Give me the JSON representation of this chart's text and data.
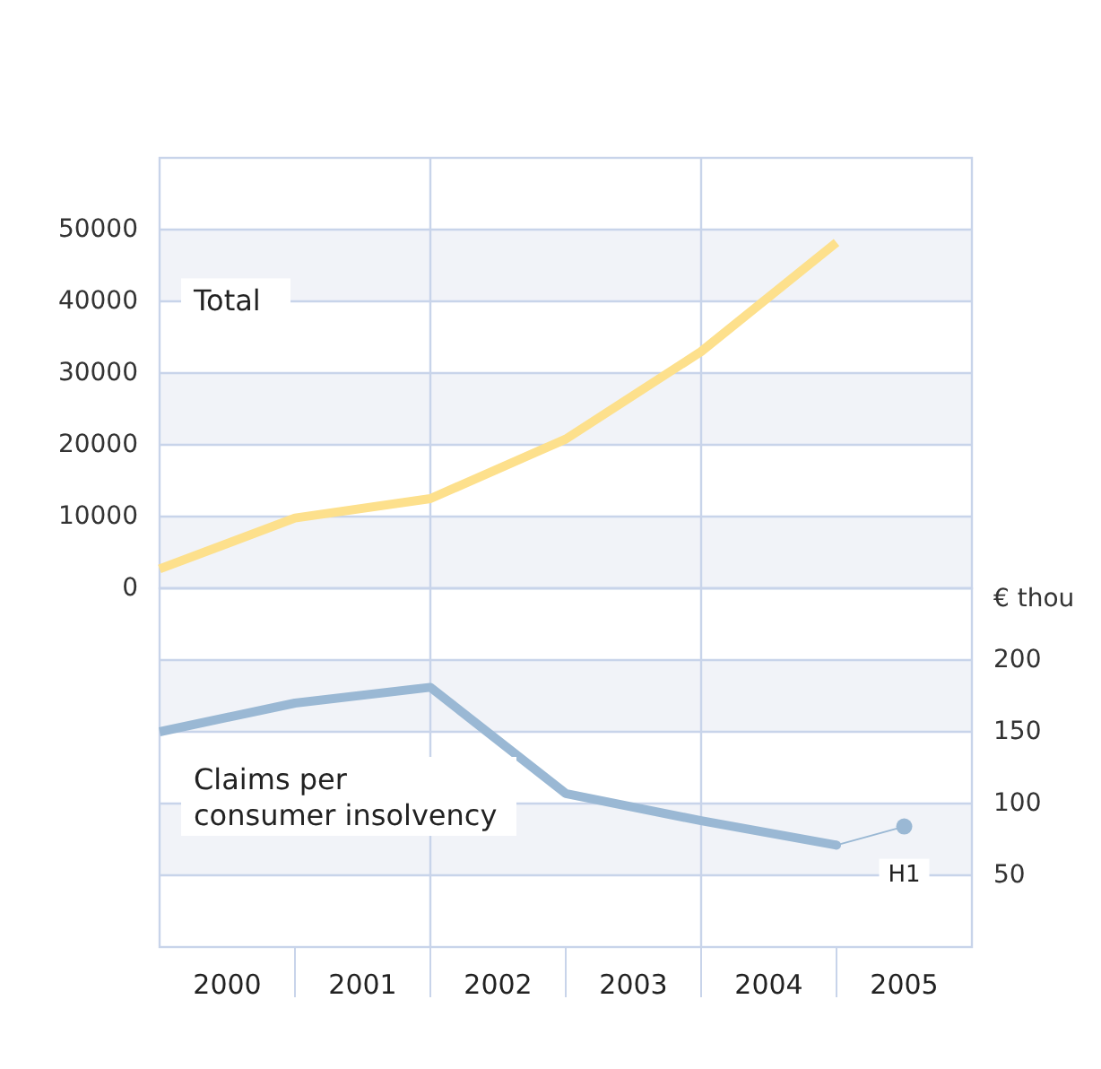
{
  "chart_data": [
    {
      "type": "line",
      "x": [
        2000,
        2001,
        2002,
        2003,
        2004,
        2005
      ],
      "series": [
        {
          "name": "Total",
          "color": "#fde08c",
          "values": [
            2700,
            9800,
            12500,
            20800,
            33000,
            48200
          ]
        }
      ],
      "xlim": [
        2000,
        2006
      ],
      "ylim": [
        0,
        60000
      ],
      "yticks": [
        0,
        10000,
        20000,
        30000,
        40000,
        50000
      ],
      "grid": "y",
      "tick_labels": "y",
      "ref_lines": [
        {
          "axis": "x",
          "value": 2002,
          "color": "#c8d4ea"
        },
        {
          "axis": "x",
          "value": 2004,
          "color": "#c8d4ea"
        }
      ]
    },
    {
      "type": "line",
      "x": [
        2000,
        2001,
        2002,
        2003,
        2004,
        2005
      ],
      "series": [
        {
          "name": "Claims per consumer insolvency",
          "color": "#9ab8d4",
          "values": [
            150,
            170,
            181,
            107,
            88,
            71
          ]
        },
        {
          "type": "line",
          "color": "#9ab8d4",
          "x": [
            2005,
            2005.5
          ],
          "values": [
            71,
            84
          ],
          "marker": "circle"
        }
      ],
      "xlim": [
        2000,
        2006
      ],
      "xticks": [
        {
          "value": 2000.5,
          "label": "2000"
        },
        {
          "value": 2001.5,
          "label": "2001"
        },
        {
          "value": 2002.5,
          "label": "2002"
        },
        {
          "value": 2003.5,
          "label": "2003"
        },
        {
          "value": 2004.5,
          "label": "2004"
        },
        {
          "value": 2005.5,
          "label": "2005"
        }
      ],
      "ylabel": "€ thou",
      "ylim": [
        0,
        250
      ],
      "yticks": [
        50,
        100,
        150,
        200
      ],
      "grid": "y",
      "ref_lines": [
        {
          "axis": "x",
          "value": 2002,
          "color": "#c8d4ea"
        },
        {
          "axis": "x",
          "value": 2004,
          "color": "#c8d4ea"
        }
      ],
      "annotations": [
        {
          "text": "H1",
          "x": 2005.5,
          "y": 84
        }
      ]
    }
  ]
}
